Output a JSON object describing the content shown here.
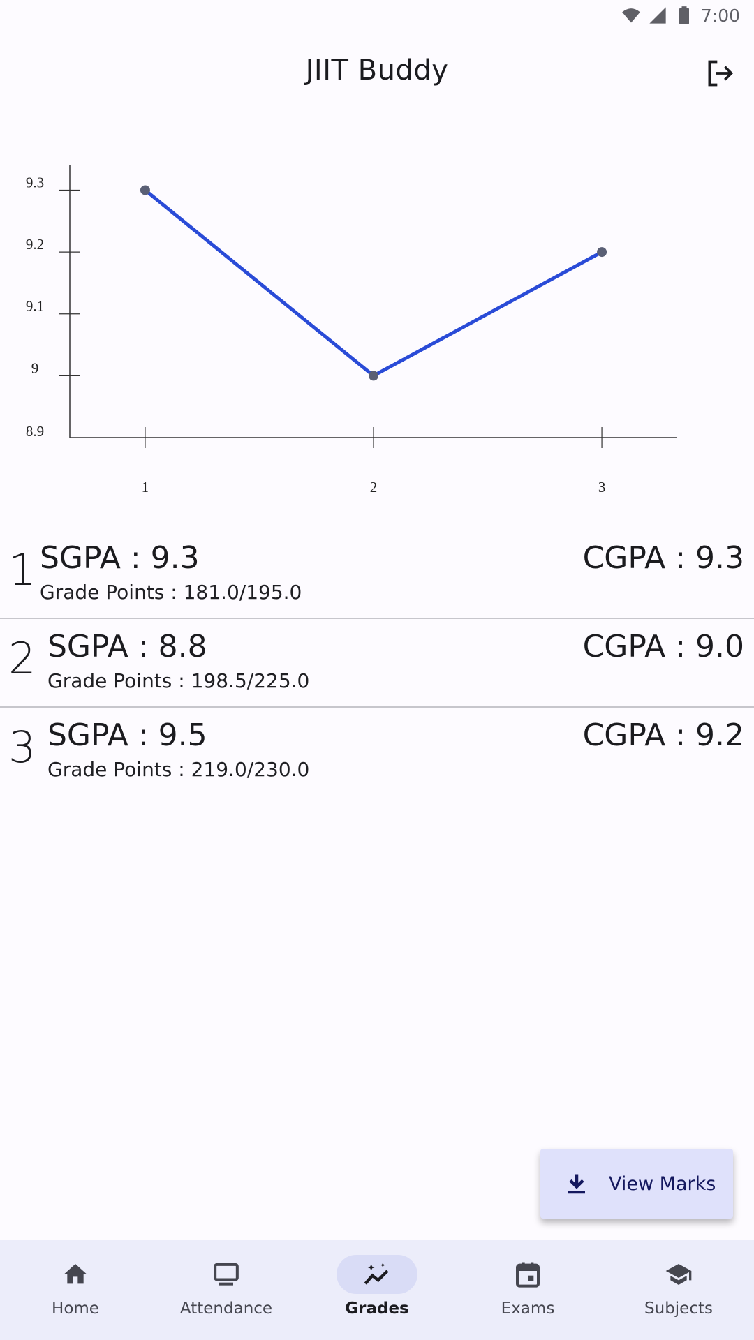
{
  "status_bar": {
    "time": "7:00",
    "icons": [
      "wifi-icon",
      "signal-icon",
      "battery-icon"
    ]
  },
  "app_bar": {
    "title": "JIIT Buddy",
    "action_icon": "logout-icon"
  },
  "chart_data": {
    "type": "line",
    "x": [
      1,
      2,
      3
    ],
    "series": [
      {
        "values": [
          9.3,
          9.0,
          9.2
        ],
        "color": "#2a4bd7"
      }
    ],
    "yticks": [
      8.9,
      9,
      9.1,
      9.2,
      9.3
    ],
    "ytick_labels": [
      "8.9",
      "9",
      "9.1",
      "9.2",
      "9.3"
    ],
    "xtick_labels": [
      "1",
      "2",
      "3"
    ],
    "ylim": [
      8.9,
      9.34
    ],
    "xlim": [
      0.67,
      3.33
    ],
    "title": "",
    "xlabel": "",
    "ylabel": "",
    "grid": false
  },
  "semesters": [
    {
      "num": "1",
      "sgpa": "SGPA : 9.3",
      "grade_points": "Grade Points : 181.0/195.0",
      "cgpa": "CGPA : 9.3"
    },
    {
      "num": "2",
      "sgpa": "SGPA : 8.8",
      "grade_points": "Grade Points : 198.5/225.0",
      "cgpa": "CGPA : 9.0"
    },
    {
      "num": "3",
      "sgpa": "SGPA : 9.5",
      "grade_points": "Grade Points : 219.0/230.0",
      "cgpa": "CGPA : 9.2"
    }
  ],
  "fab": {
    "label": "View Marks",
    "icon": "download-icon"
  },
  "bottom_nav": {
    "items": [
      {
        "label": "Home",
        "icon": "home-icon",
        "active": false
      },
      {
        "label": "Attendance",
        "icon": "monitor-icon",
        "active": false
      },
      {
        "label": "Grades",
        "icon": "trending-icon",
        "active": true
      },
      {
        "label": "Exams",
        "icon": "calendar-icon",
        "active": false
      },
      {
        "label": "Subjects",
        "icon": "school-icon",
        "active": false
      }
    ]
  },
  "colors": {
    "accent": "#2a4bd7",
    "nav_background": "#ecedfa",
    "fab_background": "#dfe1fb"
  }
}
